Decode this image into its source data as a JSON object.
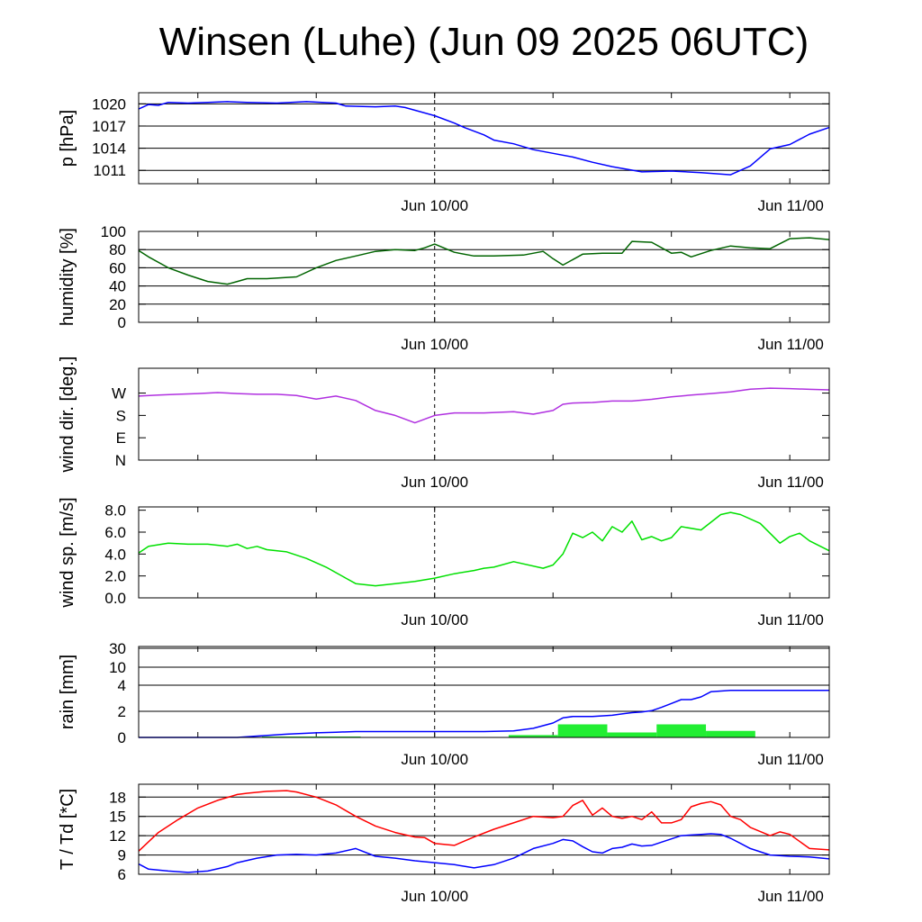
{
  "title": "Winsen (Luhe) (Jun 09 2025 06UTC)",
  "x_tick_labels": [
    "Jun 10/00",
    "Jun 11/00"
  ],
  "chart_data": [
    {
      "type": "line",
      "ylabel": "p [hPa]",
      "yticks": [
        {
          "v": 1011,
          "label": "1011"
        },
        {
          "v": 1014,
          "label": "1014"
        },
        {
          "v": 1017,
          "label": "1017"
        },
        {
          "v": 1020,
          "label": "1020"
        }
      ],
      "ylim": [
        1009.2,
        1021.5
      ],
      "grid": true,
      "series": [
        {
          "color": "#0000ff",
          "x": [
            0,
            1,
            2,
            3,
            5,
            7,
            9,
            11,
            14,
            17,
            20,
            21,
            24,
            26,
            27,
            30,
            32,
            33,
            35,
            36,
            38,
            40,
            42,
            44,
            46,
            48,
            51,
            54,
            57,
            60,
            62,
            64,
            66,
            68,
            70
          ],
          "y": [
            1019.3,
            1019.9,
            1019.8,
            1020.2,
            1020.1,
            1020.2,
            1020.3,
            1020.2,
            1020.1,
            1020.3,
            1020.1,
            1019.7,
            1019.6,
            1019.7,
            1019.5,
            1018.4,
            1017.4,
            1016.8,
            1015.8,
            1015.1,
            1014.6,
            1013.8,
            1013.3,
            1012.8,
            1012.1,
            1011.5,
            1010.8,
            1010.9,
            1010.7,
            1010.4,
            1011.6,
            1013.9,
            1014.5,
            1015.9,
            1016.8
          ]
        }
      ]
    },
    {
      "type": "line",
      "ylabel": "humidity [%]",
      "yticks": [
        {
          "v": 0,
          "label": "0"
        },
        {
          "v": 20,
          "label": "20"
        },
        {
          "v": 40,
          "label": "40"
        },
        {
          "v": 60,
          "label": "60"
        },
        {
          "v": 80,
          "label": "80"
        },
        {
          "v": 100,
          "label": "100"
        }
      ],
      "ylim": [
        0,
        100
      ],
      "grid": true,
      "series": [
        {
          "color": "#006400",
          "x": [
            0,
            1,
            3,
            5,
            7,
            9,
            10,
            11,
            13,
            16,
            18,
            20,
            22,
            24,
            26,
            28,
            29,
            30,
            32,
            34,
            36,
            39,
            41,
            42,
            43,
            45,
            47,
            49,
            50,
            52,
            54,
            55,
            56,
            58,
            60,
            62,
            64,
            66,
            68,
            70
          ],
          "y": [
            79,
            72,
            60,
            52,
            45,
            42,
            45,
            48,
            48,
            50,
            60,
            68,
            73,
            78,
            80,
            79,
            82,
            86,
            77,
            73,
            73,
            74,
            78,
            70,
            63,
            75,
            76,
            76,
            89,
            88,
            76,
            77,
            72,
            79,
            84,
            82,
            81,
            92,
            93,
            91
          ]
        }
      ]
    },
    {
      "type": "line",
      "ylabel": "wind dir. [deg.]",
      "yticks": [
        {
          "v": 0,
          "label": "N"
        },
        {
          "v": 90,
          "label": "E"
        },
        {
          "v": 180,
          "label": "S"
        },
        {
          "v": 270,
          "label": "W"
        }
      ],
      "ylim": [
        0,
        370
      ],
      "grid": false,
      "series": [
        {
          "color": "#b030e0",
          "x": [
            0,
            2,
            4,
            6,
            8,
            10,
            12,
            14,
            16,
            18,
            20,
            22,
            24,
            26,
            28,
            30,
            32,
            35,
            38,
            40,
            42,
            43,
            44,
            46,
            48,
            50,
            52,
            54,
            56,
            58,
            60,
            62,
            64,
            66,
            68,
            70
          ],
          "y": [
            258,
            262,
            265,
            268,
            272,
            268,
            265,
            265,
            260,
            246,
            258,
            240,
            200,
            180,
            150,
            180,
            190,
            190,
            195,
            185,
            200,
            225,
            230,
            232,
            238,
            238,
            245,
            255,
            262,
            268,
            275,
            286,
            290,
            288,
            285,
            283
          ]
        }
      ]
    },
    {
      "type": "line",
      "ylabel": "wind sp. [m/s]",
      "yticks": [
        {
          "v": 0,
          "label": "0.0"
        },
        {
          "v": 2,
          "label": "2.0"
        },
        {
          "v": 4,
          "label": "4.0"
        },
        {
          "v": 6,
          "label": "6.0"
        },
        {
          "v": 8,
          "label": "8.0"
        }
      ],
      "ylim": [
        0,
        8.3
      ],
      "grid": false,
      "series": [
        {
          "color": "#00e000",
          "x": [
            0,
            1,
            3,
            5,
            7,
            9,
            10,
            11,
            12,
            13,
            15,
            17,
            19,
            21,
            22,
            24,
            26,
            28,
            30,
            32,
            34,
            35,
            36,
            38,
            41,
            42,
            43,
            44,
            45,
            46,
            47,
            48,
            49,
            50,
            51,
            52,
            53,
            54,
            55,
            57,
            59,
            60,
            61,
            63,
            65,
            66,
            67,
            68,
            70
          ],
          "y": [
            4.1,
            4.7,
            5.0,
            4.9,
            4.9,
            4.7,
            4.9,
            4.5,
            4.7,
            4.4,
            4.2,
            3.6,
            2.8,
            1.8,
            1.3,
            1.1,
            1.3,
            1.5,
            1.8,
            2.2,
            2.5,
            2.7,
            2.8,
            3.3,
            2.7,
            3.0,
            4.0,
            5.9,
            5.5,
            6.0,
            5.2,
            6.5,
            6.0,
            7.0,
            5.3,
            5.6,
            5.2,
            5.5,
            6.5,
            6.2,
            7.6,
            7.8,
            7.6,
            6.8,
            5.0,
            5.6,
            5.9,
            5.2,
            4.3
          ]
        }
      ]
    },
    {
      "type": "bar",
      "ylabel": "rain [mm]",
      "scale": "nonlinear",
      "yticks": [
        {
          "v": 0,
          "label": "0"
        },
        {
          "v": 2,
          "label": "2"
        },
        {
          "v": 4,
          "label": "4"
        },
        {
          "v": 10,
          "label": "10"
        },
        {
          "v": 30,
          "label": "30"
        }
      ],
      "grid": true,
      "bars": {
        "color": "#22ee33",
        "x0": [
          12.5,
          37.5,
          42.5,
          47.5,
          52.5,
          57.5
        ],
        "x1": [
          22.5,
          42.5,
          47.5,
          52.5,
          57.5,
          62.5
        ],
        "y": [
          0.07,
          0.18,
          1.0,
          0.38,
          1.0,
          0.5
        ]
      },
      "series": [
        {
          "color": "#0000ff",
          "x": [
            0,
            10,
            12,
            15,
            18,
            20,
            22,
            26,
            30,
            35,
            38,
            40,
            42,
            43,
            44,
            46,
            48,
            49,
            50,
            51,
            52,
            53,
            54,
            55,
            56,
            57,
            58,
            60,
            65,
            70
          ],
          "y": [
            0,
            0,
            0.1,
            0.25,
            0.35,
            0.4,
            0.45,
            0.45,
            0.45,
            0.45,
            0.5,
            0.7,
            1.1,
            1.5,
            1.6,
            1.6,
            1.7,
            1.8,
            1.9,
            1.95,
            2.05,
            2.3,
            2.6,
            2.9,
            2.9,
            3.1,
            3.5,
            3.6,
            3.6,
            3.6
          ]
        }
      ]
    },
    {
      "type": "line",
      "ylabel": "T / Td [*C]",
      "yticks": [
        {
          "v": 6,
          "label": "6"
        },
        {
          "v": 9,
          "label": "9"
        },
        {
          "v": 12,
          "label": "12"
        },
        {
          "v": 15,
          "label": "15"
        },
        {
          "v": 18,
          "label": "18"
        }
      ],
      "ylim": [
        6,
        20
      ],
      "grid": true,
      "series": [
        {
          "color": "#ff0000",
          "x": [
            0,
            2,
            4,
            6,
            8,
            10,
            11,
            13,
            15,
            16,
            18,
            20,
            22,
            24,
            26,
            28,
            29,
            30,
            32,
            34,
            36,
            38,
            40,
            42,
            43,
            44,
            45,
            46,
            47,
            48,
            49,
            50,
            51,
            52,
            53,
            54,
            55,
            56,
            57,
            58,
            59,
            60,
            61,
            62,
            64,
            65,
            66,
            68,
            70
          ],
          "y": [
            9.6,
            12.5,
            14.5,
            16.3,
            17.5,
            18.4,
            18.6,
            18.9,
            19.0,
            18.8,
            18.0,
            16.8,
            15.0,
            13.5,
            12.5,
            11.8,
            11.7,
            10.8,
            10.5,
            11.8,
            13.0,
            14.0,
            15.0,
            14.8,
            15.0,
            16.7,
            17.5,
            15.2,
            16.3,
            15.0,
            14.7,
            15.0,
            14.5,
            15.7,
            14.0,
            14.0,
            14.5,
            16.5,
            17.0,
            17.3,
            16.8,
            15.0,
            14.5,
            13.3,
            12.0,
            12.6,
            12.2,
            10.0,
            9.8
          ]
        },
        {
          "color": "#0000ff",
          "x": [
            0,
            1,
            3,
            5,
            7,
            9,
            10,
            12,
            14,
            16,
            18,
            20,
            22,
            24,
            26,
            28,
            30,
            32,
            34,
            36,
            38,
            40,
            42,
            43,
            44,
            45,
            46,
            47,
            48,
            49,
            50,
            51,
            52,
            53,
            54,
            55,
            56,
            57,
            58,
            59,
            60,
            61,
            62,
            64,
            66,
            68,
            70
          ],
          "y": [
            7.6,
            6.8,
            6.5,
            6.3,
            6.5,
            7.2,
            7.8,
            8.5,
            9.0,
            9.1,
            9.0,
            9.3,
            10.0,
            8.8,
            8.5,
            8.1,
            7.8,
            7.5,
            7.0,
            7.5,
            8.5,
            10.0,
            10.8,
            11.4,
            11.2,
            10.3,
            9.5,
            9.3,
            10.0,
            10.2,
            10.7,
            10.4,
            10.5,
            11.0,
            11.5,
            12.0,
            12.1,
            12.2,
            12.3,
            12.2,
            11.6,
            10.8,
            10.0,
            9.0,
            8.8,
            8.7,
            8.4
          ]
        }
      ]
    }
  ]
}
